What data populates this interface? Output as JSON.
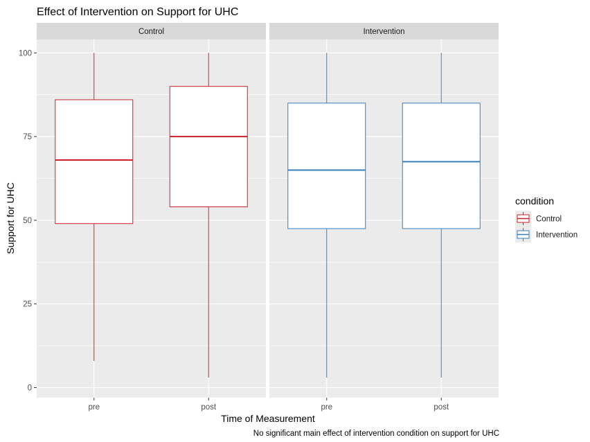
{
  "chart_data": {
    "type": "boxplot",
    "title": "Effect of Intervention on Support for UHC",
    "xlabel": "Time of Measurement",
    "ylabel": "Support for UHC",
    "caption": "No significant main effect of intervention condition on support for UHC",
    "ylim": [
      -3,
      104
    ],
    "yticks": [
      0,
      25,
      50,
      75,
      100
    ],
    "categories": [
      "pre",
      "post"
    ],
    "legend": {
      "title": "condition",
      "position": "right",
      "entries": [
        {
          "name": "Control",
          "color": "#CB2027"
        },
        {
          "name": "Intervention",
          "color": "#377EB8"
        }
      ]
    },
    "facets": [
      {
        "label": "Control",
        "color": "#CB2027",
        "boxes": [
          {
            "x": "pre",
            "min": 8,
            "q1": 49,
            "median": 68,
            "q3": 86,
            "max": 100
          },
          {
            "x": "post",
            "min": 3,
            "q1": 54,
            "median": 75,
            "q3": 90,
            "max": 100
          }
        ]
      },
      {
        "label": "Intervention",
        "color": "#377EB8",
        "boxes": [
          {
            "x": "pre",
            "min": 3,
            "q1": 47.5,
            "median": 65,
            "q3": 85,
            "max": 100
          },
          {
            "x": "post",
            "min": 3,
            "q1": 47.5,
            "median": 67.5,
            "q3": 85,
            "max": 100
          }
        ]
      }
    ],
    "grid": true,
    "panel_background": "#EBEBEB",
    "strip_background": "#D9D9D9"
  }
}
